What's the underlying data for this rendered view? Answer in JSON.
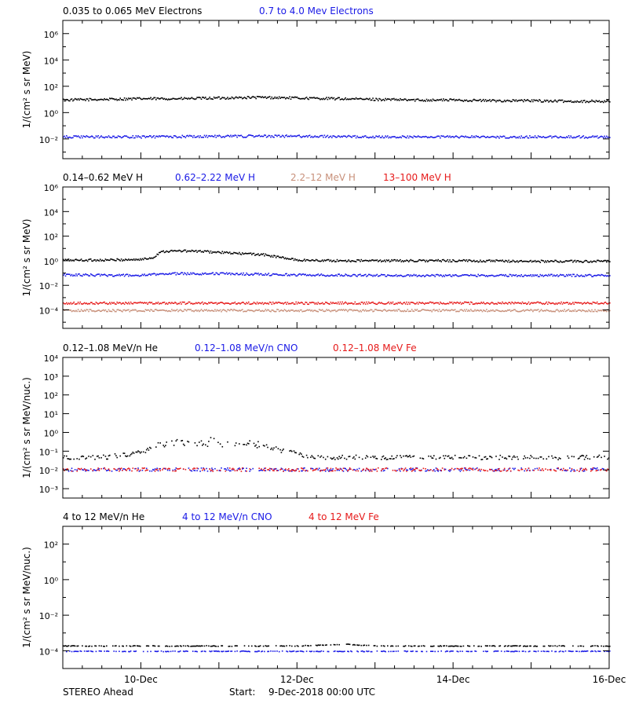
{
  "footer": {
    "spacecraft": "STEREO Ahead",
    "start_prefix": "Start:",
    "start": "9-Dec-2018 00:00 UTC"
  },
  "colors": {
    "black": "#000000",
    "blue": "#1a1ae6",
    "tan": "#c8907a",
    "red": "#e61a1a"
  },
  "chart_data": [
    {
      "type": "scatter",
      "yscale": "log",
      "ylabel": "1/(cm² s sr MeV)",
      "ylim_exp": [
        -3.5,
        7
      ],
      "yticks": [
        {
          "exp": -2,
          "label": "10⁻²"
        },
        {
          "exp": 0,
          "label": "10⁰"
        },
        {
          "exp": 2,
          "label": "10²"
        },
        {
          "exp": 4,
          "label": "10⁴"
        },
        {
          "exp": 6,
          "label": "10⁶"
        }
      ],
      "xlim_days": [
        "9-Dec-2018 00:00",
        "16-Dec-2018 00:00"
      ],
      "xticks": [],
      "series": [
        {
          "name": "0.035 to 0.065 MeV Electrons",
          "color": "#000000",
          "x_days": [
            0,
            0.5,
            1,
            1.5,
            2,
            2.5,
            3,
            3.5,
            4,
            4.5,
            5,
            5.5,
            6,
            6.5,
            7
          ],
          "log10_values": [
            1.0,
            1.05,
            1.1,
            1.1,
            1.15,
            1.2,
            1.15,
            1.1,
            1.05,
            1.0,
            1.0,
            0.95,
            0.95,
            0.9,
            0.9
          ]
        },
        {
          "name": "0.7 to 4.0 Mev Electrons",
          "color": "#1a1ae6",
          "x_days": [
            0,
            1,
            2,
            3,
            4,
            5,
            6,
            7
          ],
          "log10_values": [
            -1.8,
            -1.8,
            -1.75,
            -1.75,
            -1.8,
            -1.8,
            -1.8,
            -1.8
          ]
        }
      ]
    },
    {
      "type": "scatter",
      "yscale": "log",
      "ylabel": "1/(cm² s sr MeV)",
      "ylim_exp": [
        -5.5,
        6
      ],
      "yticks": [
        {
          "exp": -4,
          "label": "10⁻⁴"
        },
        {
          "exp": -2,
          "label": "10⁻²"
        },
        {
          "exp": 0,
          "label": "10⁰"
        },
        {
          "exp": 2,
          "label": "10²"
        },
        {
          "exp": 4,
          "label": "10⁴"
        },
        {
          "exp": 6,
          "label": "10⁶"
        }
      ],
      "xlim_days": [
        "9-Dec-2018 00:00",
        "16-Dec-2018 00:00"
      ],
      "xticks": [],
      "series": [
        {
          "name": "0.14–0.62 MeV H",
          "color": "#000000",
          "x_days": [
            0,
            0.5,
            1,
            1.15,
            1.25,
            1.5,
            1.8,
            2.2,
            2.55,
            2.8,
            3.0,
            3.5,
            4,
            5,
            6,
            7
          ],
          "log10_values": [
            0.1,
            0.1,
            0.15,
            0.3,
            0.8,
            0.85,
            0.8,
            0.65,
            0.55,
            0.3,
            0.1,
            0.05,
            0.05,
            0.05,
            0.0,
            0.0
          ]
        },
        {
          "name": "0.62–2.22 MeV H",
          "color": "#1a1ae6",
          "x_days": [
            0,
            1,
            1.3,
            2,
            3,
            4,
            5,
            6,
            7
          ],
          "log10_values": [
            -1.1,
            -1.15,
            -1.0,
            -1.0,
            -1.1,
            -1.15,
            -1.15,
            -1.15,
            -1.15
          ]
        },
        {
          "name": "2.2–12 MeV H",
          "color": "#c8907a",
          "x_days": [
            0,
            1,
            2,
            3,
            4,
            5,
            6,
            7
          ],
          "log10_values": [
            -4.0,
            -4.0,
            -4.0,
            -4.0,
            -4.0,
            -4.0,
            -4.0,
            -4.0
          ]
        },
        {
          "name": "13–100 MeV H",
          "color": "#e61a1a",
          "x_days": [
            0,
            1,
            2,
            3,
            4,
            5,
            6,
            7
          ],
          "log10_values": [
            -3.4,
            -3.4,
            -3.4,
            -3.4,
            -3.4,
            -3.4,
            -3.4,
            -3.4
          ]
        }
      ]
    },
    {
      "type": "scatter",
      "yscale": "log",
      "ylabel": "1/(cm² s sr MeV/nuc.)",
      "ylim_exp": [
        -3.5,
        4
      ],
      "yticks": [
        {
          "exp": -3,
          "label": "10⁻³"
        },
        {
          "exp": -2,
          "label": "10⁻²"
        },
        {
          "exp": -1,
          "label": "10⁻¹"
        },
        {
          "exp": 0,
          "label": "10⁰"
        },
        {
          "exp": 1,
          "label": "10¹"
        },
        {
          "exp": 2,
          "label": "10²"
        },
        {
          "exp": 3,
          "label": "10³"
        },
        {
          "exp": 4,
          "label": "10⁴"
        }
      ],
      "xlim_days": [
        "9-Dec-2018 00:00",
        "16-Dec-2018 00:00"
      ],
      "xticks": [],
      "series": [
        {
          "name": "0.12–1.08 MeV/n He",
          "color": "#000000",
          "x_days": [
            0,
            0.5,
            1,
            1.2,
            1.5,
            1.8,
            2.1,
            2.4,
            2.6,
            2.8,
            3.2,
            4,
            5,
            6,
            7
          ],
          "log10_values": [
            -1.3,
            -1.3,
            -1.05,
            -0.6,
            -0.45,
            -0.55,
            -0.6,
            -0.5,
            -0.75,
            -0.9,
            -1.3,
            -1.3,
            -1.3,
            -1.3,
            -1.3
          ]
        },
        {
          "name": "0.12–1.08 MeV/n CNO",
          "color": "#1a1ae6",
          "x_days": [
            0,
            1,
            2,
            3,
            4,
            5,
            6,
            7
          ],
          "log10_values": [
            -1.95,
            -1.95,
            -1.95,
            -1.95,
            -1.95,
            -1.95,
            -1.95,
            -1.95
          ]
        },
        {
          "name": "0.12–1.08 MeV Fe",
          "color": "#e61a1a",
          "x_days": [
            0,
            1,
            2,
            3,
            4,
            5,
            6,
            7
          ],
          "log10_values": [
            -1.95,
            -1.95,
            -1.95,
            -1.95,
            -1.95,
            -1.95,
            -1.95,
            -1.95
          ]
        }
      ]
    },
    {
      "type": "scatter",
      "yscale": "log",
      "ylabel": "1/(cm² s sr MeV/nuc.)",
      "ylim_exp": [
        -5,
        3
      ],
      "yticks": [
        {
          "exp": -4,
          "label": "10⁻⁴"
        },
        {
          "exp": -2,
          "label": "10⁻²"
        },
        {
          "exp": 0,
          "label": "10⁰"
        },
        {
          "exp": 2,
          "label": "10²"
        }
      ],
      "xlim_days": [
        "9-Dec-2018 00:00",
        "16-Dec-2018 00:00"
      ],
      "xticks": [
        "10-Dec",
        "12-Dec",
        "14-Dec",
        "16-Dec"
      ],
      "series": [
        {
          "name": "4 to 12 MeV/n He",
          "color": "#000000",
          "x_days": [
            0,
            1,
            2,
            3,
            3.6,
            4,
            5,
            6,
            7
          ],
          "log10_values": [
            -3.7,
            -3.7,
            -3.7,
            -3.7,
            -3.6,
            -3.7,
            -3.7,
            -3.7,
            -3.7
          ]
        },
        {
          "name": "4 to 12 MeV/n CNO",
          "color": "#1a1ae6",
          "x_days": [
            0,
            1,
            2,
            3,
            4,
            5,
            6,
            7
          ],
          "log10_values": [
            -4.0,
            -4.0,
            -4.0,
            -4.0,
            -4.0,
            -4.0,
            -4.0,
            -4.0
          ]
        },
        {
          "name": "4 to 12 MeV Fe",
          "color": "#e61a1a",
          "x_days": [],
          "log10_values": []
        }
      ]
    }
  ]
}
